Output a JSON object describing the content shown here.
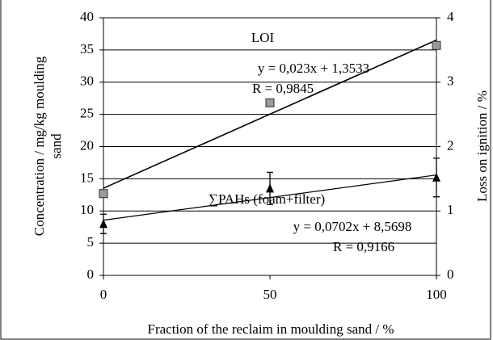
{
  "chart_data": {
    "type": "scatter",
    "x_label": "Fraction of the reclaim in moulding sand / %",
    "y_label": [
      "Concentration / mg/kg moulding",
      "sand"
    ],
    "y2_label": "Loss on ignition / %",
    "xlim": [
      0,
      100
    ],
    "xticks": [
      0,
      50,
      100
    ],
    "ylim": [
      0,
      40
    ],
    "yticks": [
      0,
      5,
      10,
      15,
      20,
      25,
      30,
      35,
      40
    ],
    "y2lim": [
      0,
      4
    ],
    "y2ticks": [
      0,
      1,
      2,
      3,
      4
    ],
    "grid": true,
    "series": [
      {
        "name": "LOI",
        "axis": "y2",
        "marker": "square",
        "color": "#9a9a9a",
        "x": [
          0,
          50,
          100
        ],
        "values": [
          1.27,
          2.68,
          3.57
        ],
        "trendline": {
          "slope": 0.023,
          "intercept": 1.3533,
          "equation": "y = 0,023x + 1,3533",
          "r": "R  = 0,9845"
        }
      },
      {
        "name": "∑PAHs (foam+filter)",
        "axis": "y",
        "marker": "triangle",
        "color": "#000000",
        "x": [
          0,
          50,
          100
        ],
        "values": [
          8,
          13.5,
          15.2
        ],
        "errors": [
          1.5,
          2.5,
          3
        ],
        "trendline": {
          "slope": 0.0702,
          "intercept": 8.5698,
          "equation": "y = 0,0702x + 8,5698",
          "r": "R  = 0,9166"
        }
      }
    ]
  }
}
